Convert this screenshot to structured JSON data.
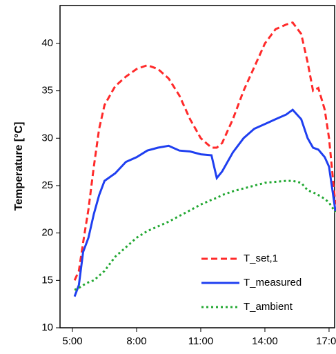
{
  "chart_data": {
    "type": "line",
    "ylabel": "Temperature [°C]",
    "x": [
      5.1,
      5.3,
      5.5,
      5.75,
      6,
      6.25,
      6.5,
      7,
      7.5,
      8,
      8.5,
      9,
      9.5,
      10,
      10.5,
      11,
      11.5,
      11.75,
      12,
      12.5,
      13,
      13.5,
      14,
      14.5,
      15,
      15.3,
      15.7,
      16,
      16.25,
      16.5,
      16.8,
      17,
      17.3
    ],
    "series": [
      {
        "name": "T_set,1",
        "color": "#ff2a2a",
        "dash": "dashed",
        "values": [
          15,
          16,
          19,
          22.5,
          27,
          31,
          33.5,
          35.5,
          36.5,
          37.3,
          37.7,
          37.3,
          36.3,
          34.5,
          32,
          30,
          29,
          29,
          29.5,
          32,
          35,
          37.5,
          40,
          41.5,
          42,
          42.2,
          41,
          38,
          35,
          35.3,
          33,
          30,
          23
        ]
      },
      {
        "name": "T_measured",
        "color": "#1f3ff0",
        "dash": "solid",
        "values": [
          13.3,
          14.5,
          18,
          19.5,
          22,
          24,
          25.5,
          26.3,
          27.5,
          28,
          28.7,
          29,
          29.2,
          28.7,
          28.6,
          28.3,
          28.2,
          25.8,
          26.5,
          28.5,
          30,
          31,
          31.5,
          32,
          32.5,
          33,
          32,
          30,
          29,
          28.8,
          28,
          27,
          22.3
        ]
      },
      {
        "name": "T_ambient",
        "color": "#22a832",
        "dash": "dotted",
        "values": [
          14,
          14.2,
          14.5,
          14.8,
          15,
          15.5,
          16,
          17.5,
          18.5,
          19.5,
          20.2,
          20.7,
          21.2,
          21.8,
          22.4,
          23,
          23.5,
          23.7,
          24,
          24.4,
          24.7,
          25,
          25.3,
          25.4,
          25.5,
          25.5,
          25.3,
          24.5,
          24.3,
          24,
          23.6,
          23.2,
          22.2
        ]
      }
    ],
    "xlim": [
      4.42,
      17.26
    ],
    "xticks": [
      {
        "value": 5,
        "label": "5:00"
      },
      {
        "value": 8,
        "label": "8:00"
      },
      {
        "value": 11,
        "label": "11:00"
      },
      {
        "value": 14,
        "label": "14:00"
      },
      {
        "value": 17,
        "label": "17:00"
      }
    ],
    "ylim": [
      10,
      44
    ],
    "yticks": [
      10,
      15,
      20,
      25,
      30,
      35,
      40
    ],
    "grid": false,
    "legend": "lower-right"
  }
}
